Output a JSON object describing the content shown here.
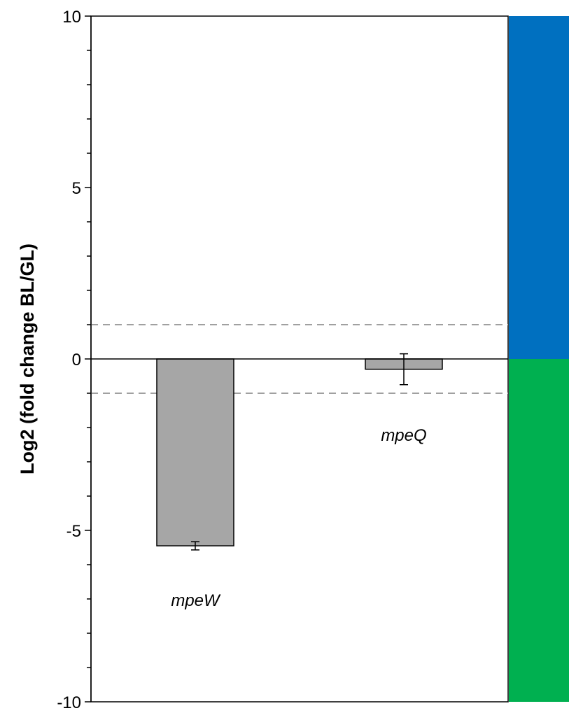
{
  "chart_data": {
    "type": "bar",
    "title": "",
    "xlabel": "",
    "ylabel": "Log2 (fold change BL/GL)",
    "ylim": [
      -10,
      10
    ],
    "yticks": [
      10,
      5,
      0,
      -5,
      -10
    ],
    "minor_tick_step": 1,
    "threshold_lines": [
      1,
      -1
    ],
    "categories": [
      "mpeW",
      "mpeQ"
    ],
    "values": [
      -5.45,
      -0.3
    ],
    "error_bars": [
      0.12,
      0.45
    ],
    "grid": false,
    "legend": "none",
    "side_bands": [
      {
        "from": 0,
        "to": 10,
        "color": "#0070C0"
      },
      {
        "from": -10,
        "to": 0,
        "color": "#00B050"
      }
    ],
    "colors": {
      "bar_fill": "#a6a6a6",
      "bar_stroke": "#000000",
      "threshold": "#a0a0a0",
      "axis": "#000000"
    }
  }
}
